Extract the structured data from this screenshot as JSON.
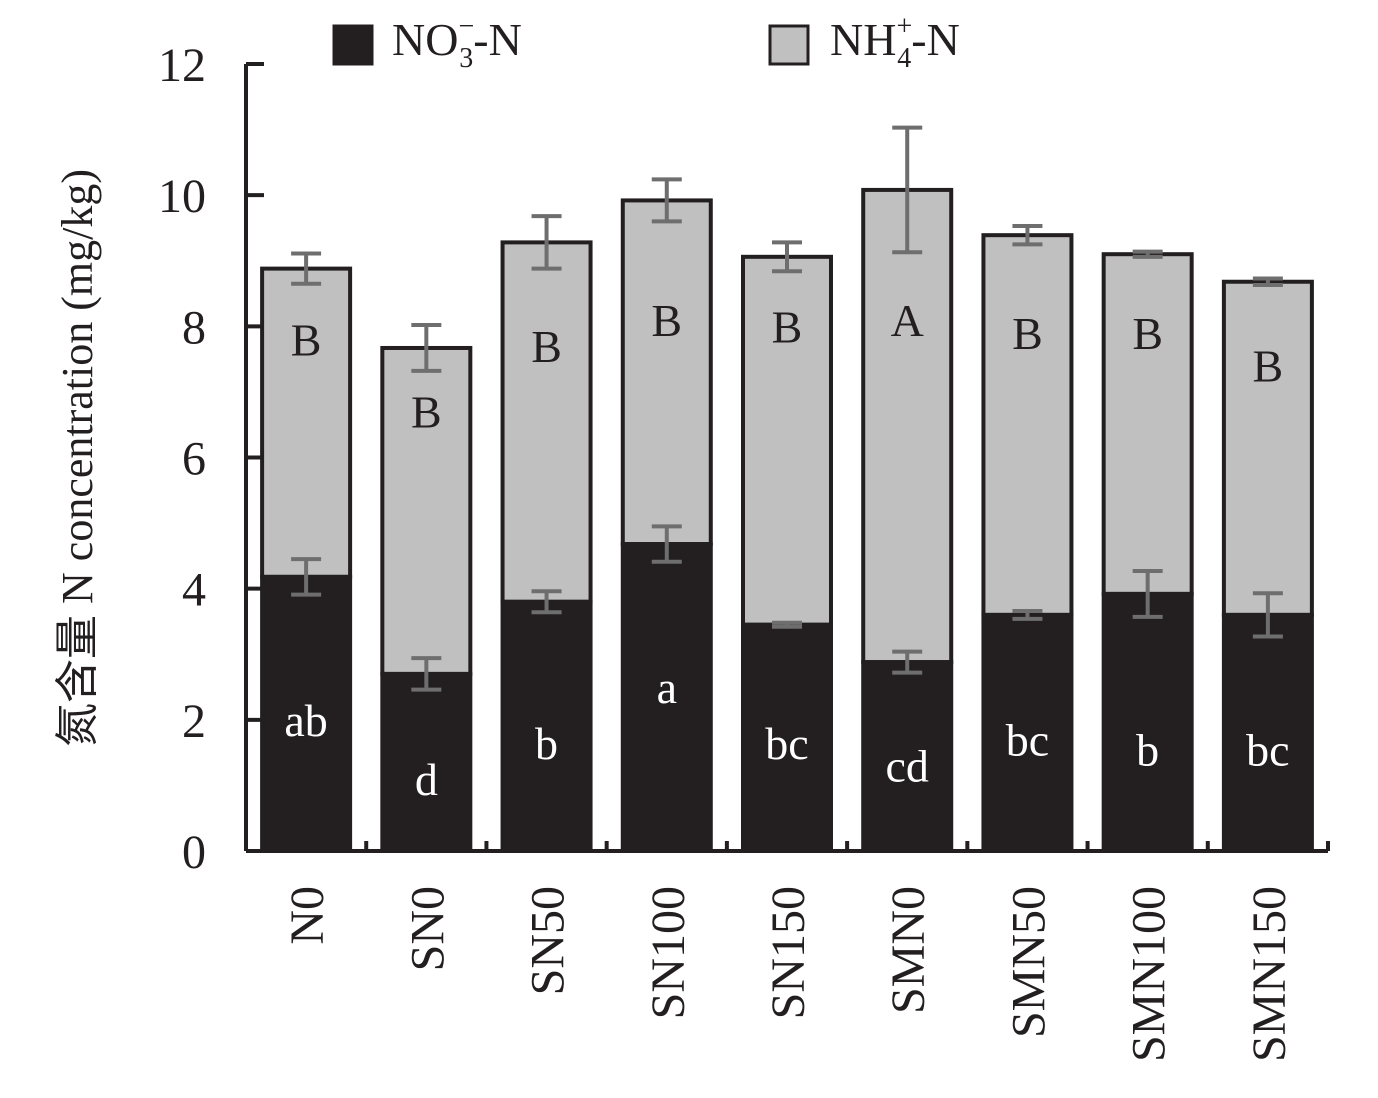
{
  "chart_data": {
    "type": "bar",
    "stacked": true,
    "categories": [
      "N0",
      "SN0",
      "SN50",
      "SN100",
      "SN150",
      "SMN0",
      "SMN50",
      "SMN100",
      "SMN150"
    ],
    "ylabel": "氮含量 N concentration (mg/kg)",
    "ylim": [
      0,
      12
    ],
    "yticks": [
      "0",
      "2",
      "4",
      "6",
      "8",
      "10",
      "12"
    ],
    "grid": false,
    "legend_position": "top",
    "series": [
      {
        "name": "NO3−-N",
        "legend_base": "NO",
        "legend_sub": "3",
        "legend_sup": "−",
        "legend_tail": "-N",
        "color": "#231f20",
        "values": [
          4.18,
          2.7,
          3.8,
          4.68,
          3.45,
          2.88,
          3.6,
          3.92,
          3.6
        ],
        "errors": [
          0.27,
          0.24,
          0.16,
          0.27,
          0.03,
          0.16,
          0.06,
          0.35,
          0.33
        ],
        "letters": [
          "ab",
          "d",
          "b",
          "a",
          "bc",
          "cd",
          "bc",
          "b",
          "bc"
        ],
        "letter_values": [
          2.0,
          1.1,
          1.65,
          2.5,
          1.65,
          1.3,
          1.7,
          1.55,
          1.55
        ],
        "letter_color": "#ffffff"
      },
      {
        "name": "NH4+-N",
        "legend_base": "NH",
        "legend_sub": "4",
        "legend_sup": "+",
        "legend_tail": "-N",
        "color": "#c0c0c0",
        "values": [
          4.7,
          4.97,
          5.48,
          5.24,
          5.61,
          7.2,
          5.79,
          5.18,
          5.08
        ],
        "errors": [
          0.23,
          0.35,
          0.4,
          0.32,
          0.22,
          0.95,
          0.14,
          0.04,
          0.05
        ],
        "letters": [
          "B",
          "B",
          "B",
          "B",
          "B",
          "A",
          "B",
          "B",
          "B"
        ],
        "letter_values": [
          7.8,
          6.7,
          7.7,
          8.1,
          8.0,
          8.1,
          7.9,
          7.9,
          7.4
        ],
        "letter_color": "#231f20"
      }
    ]
  }
}
